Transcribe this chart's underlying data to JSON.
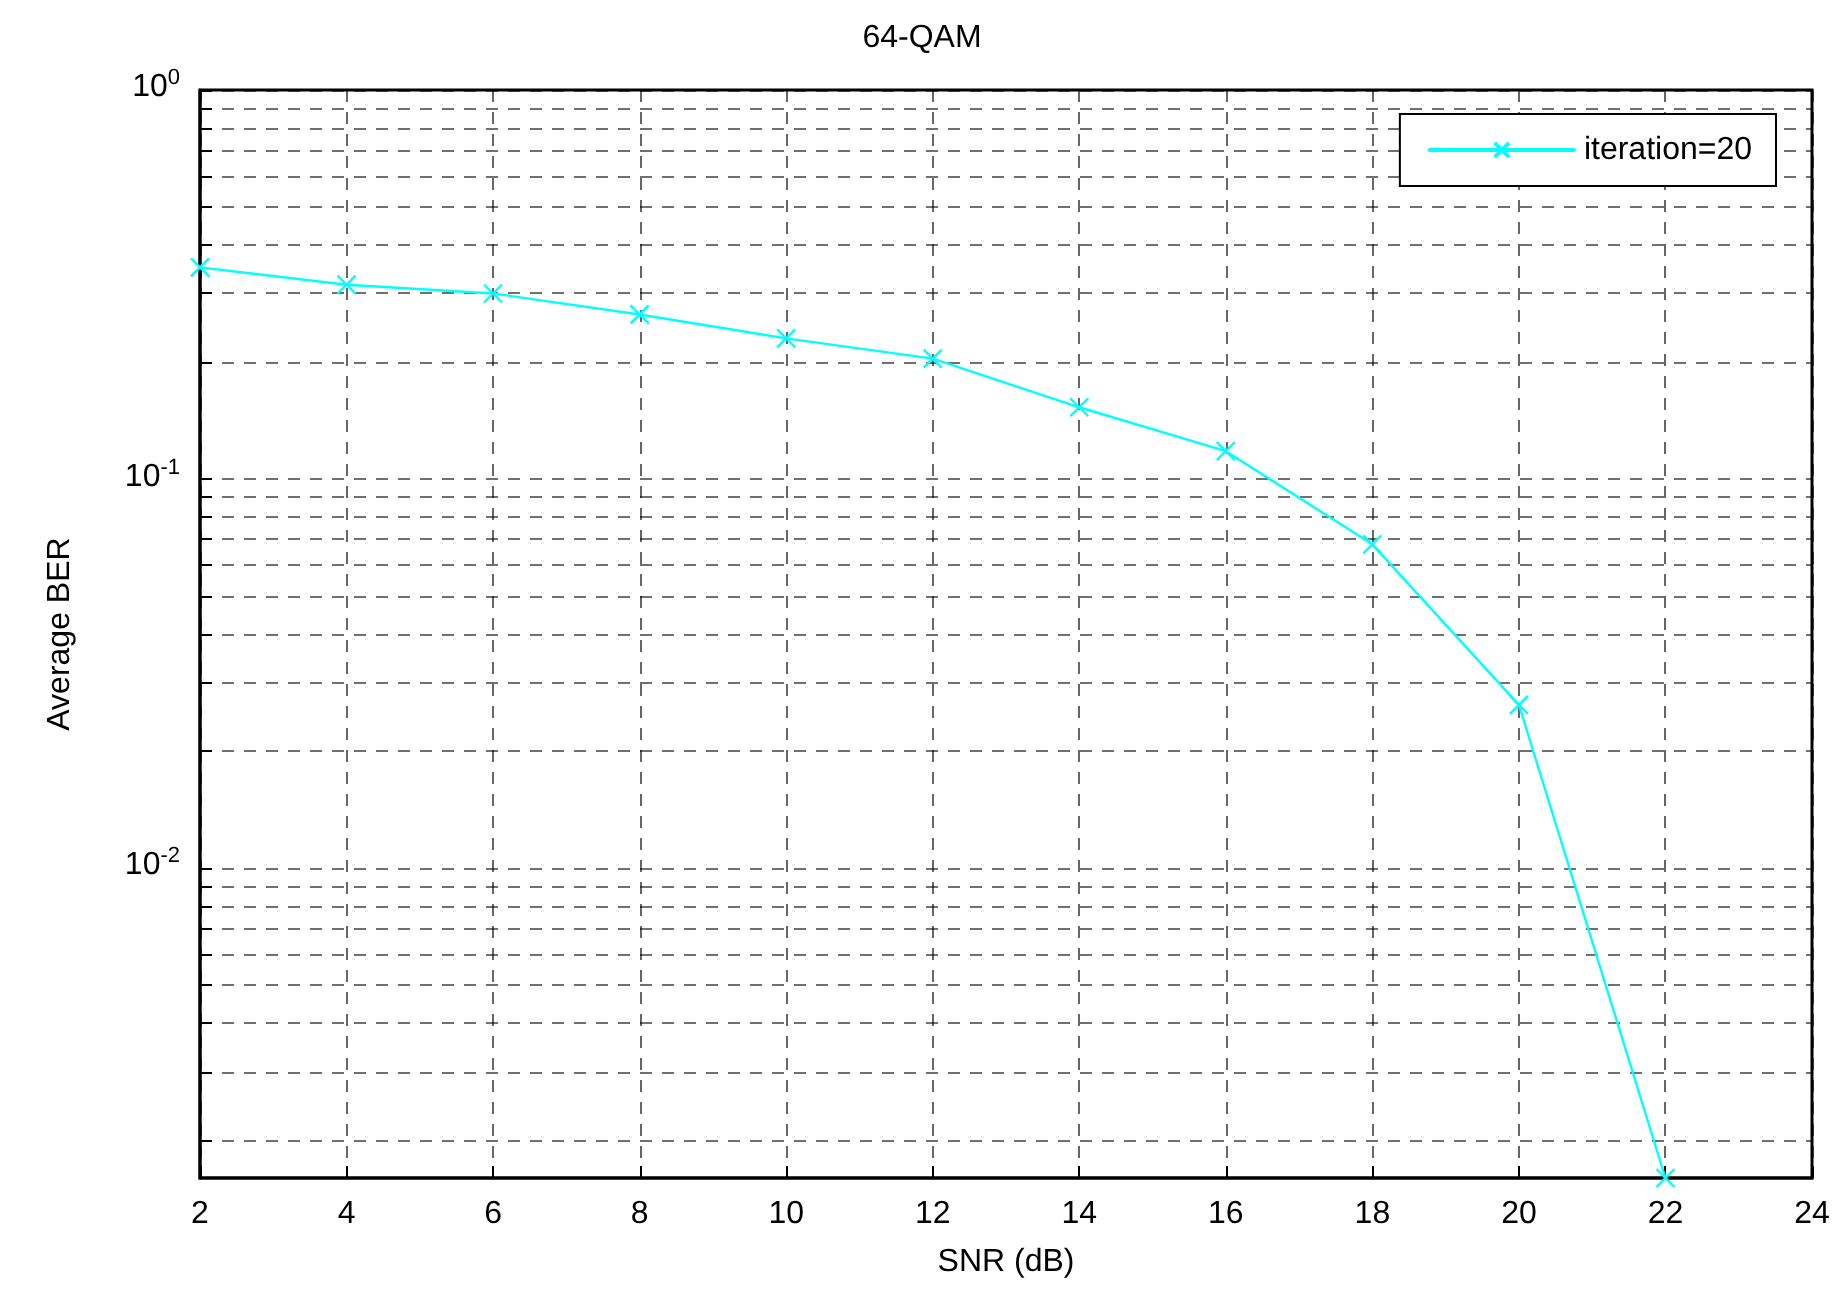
{
  "chart_data": {
    "type": "line",
    "title": "64-QAM",
    "xlabel": "SNR (dB)",
    "ylabel": "Average BER",
    "x": [
      2,
      4,
      6,
      8,
      10,
      12,
      14,
      16,
      18,
      20,
      22
    ],
    "series": [
      {
        "name": "iteration=20",
        "color": "#00ffff",
        "values": [
          0.35,
          0.316,
          0.3,
          0.265,
          0.23,
          0.204,
          0.153,
          0.118,
          0.068,
          0.0263,
          0.0016
        ]
      }
    ],
    "xlim": [
      2,
      24
    ],
    "xticks": [
      2,
      4,
      6,
      8,
      10,
      12,
      14,
      16,
      18,
      20,
      22,
      24
    ],
    "ylim": [
      0.0016,
      1
    ],
    "yticks": [
      {
        "value": 0.002,
        "label": null
      },
      {
        "value": 0.003,
        "label": null
      },
      {
        "value": 0.004,
        "label": null
      },
      {
        "value": 0.005,
        "label": null
      },
      {
        "value": 0.006,
        "label": null
      },
      {
        "value": 0.007,
        "label": null
      },
      {
        "value": 0.008,
        "label": null
      },
      {
        "value": 0.009,
        "label": null
      },
      {
        "value": 0.01,
        "label": "10$^{-2}$"
      },
      {
        "value": 0.02,
        "label": null
      },
      {
        "value": 0.03,
        "label": null
      },
      {
        "value": 0.04,
        "label": null
      },
      {
        "value": 0.05,
        "label": null
      },
      {
        "value": 0.06,
        "label": null
      },
      {
        "value": 0.07,
        "label": null
      },
      {
        "value": 0.08,
        "label": null
      },
      {
        "value": 0.09,
        "label": null
      },
      {
        "value": 0.1,
        "label": "10$^{-1}$"
      },
      {
        "value": 0.2,
        "label": null
      },
      {
        "value": 0.3,
        "label": null
      },
      {
        "value": 0.4,
        "label": null
      },
      {
        "value": 0.5,
        "label": null
      },
      {
        "value": 0.6,
        "label": null
      },
      {
        "value": 0.7,
        "label": null
      },
      {
        "value": 0.8,
        "label": null
      },
      {
        "value": 0.9,
        "label": null
      },
      {
        "value": 1,
        "label": "10$^{0}$"
      }
    ],
    "log": "y",
    "grid": true,
    "legend": "top right",
    "marker": "cross",
    "line_style": "solid"
  }
}
